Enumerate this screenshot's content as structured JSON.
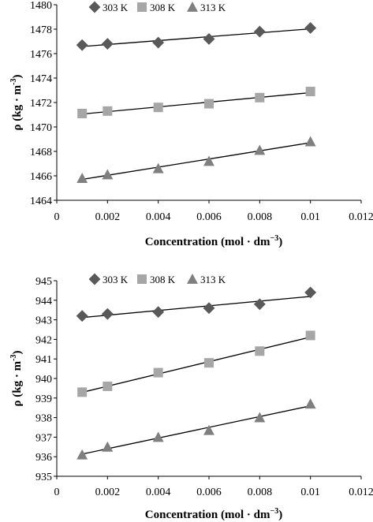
{
  "chart_data": [
    {
      "type": "scatter",
      "xlabel": "Concentration (mol · dm",
      "xlabel_sup": "−3",
      "xlabel_close": ")",
      "ylabel": "ρ (kg · m",
      "ylabel_sup": "-3",
      "ylabel_close": ")",
      "xlim": [
        0,
        0.012
      ],
      "ylim": [
        1464,
        1480
      ],
      "x_ticks": [
        "0",
        "0.002",
        "0.004",
        "0.006",
        "0.008",
        "0.01",
        "0.012"
      ],
      "y_ticks": [
        "1464",
        "1466",
        "1468",
        "1470",
        "1472",
        "1474",
        "1476",
        "1478",
        "1480"
      ],
      "legend_position": "top",
      "grid": false,
      "trendline": "linear",
      "series": [
        {
          "name": "303 K",
          "marker": "diamond",
          "color": "#595959",
          "x": [
            0.001,
            0.002,
            0.004,
            0.006,
            0.008,
            0.01
          ],
          "y": [
            1476.7,
            1476.8,
            1476.9,
            1477.2,
            1477.8,
            1478.1
          ]
        },
        {
          "name": "308 K",
          "marker": "square",
          "color": "#a6a6a6",
          "x": [
            0.001,
            0.002,
            0.004,
            0.006,
            0.008,
            0.01
          ],
          "y": [
            1471.1,
            1471.3,
            1471.6,
            1471.9,
            1472.4,
            1472.9
          ]
        },
        {
          "name": "313 K",
          "marker": "triangle",
          "color": "#7f7f7f",
          "x": [
            0.001,
            0.002,
            0.004,
            0.006,
            0.008,
            0.01
          ],
          "y": [
            1465.8,
            1466.1,
            1466.6,
            1467.2,
            1468.1,
            1468.8
          ]
        }
      ]
    },
    {
      "type": "scatter",
      "xlabel": "Concentration (mol · dm",
      "xlabel_sup": "−3",
      "xlabel_close": ")",
      "ylabel": "ρ (kg · m",
      "ylabel_sup": "-3",
      "ylabel_close": ")",
      "xlim": [
        0,
        0.012
      ],
      "ylim": [
        935,
        945
      ],
      "x_ticks": [
        "0",
        "0.002",
        "0.004",
        "0.006",
        "0.008",
        "0.01",
        "0.012"
      ],
      "y_ticks": [
        "935",
        "936",
        "937",
        "938",
        "939",
        "940",
        "941",
        "942",
        "943",
        "944",
        "945"
      ],
      "legend_position": "top",
      "grid": false,
      "trendline": "linear",
      "series": [
        {
          "name": "303 K",
          "marker": "diamond",
          "color": "#595959",
          "x": [
            0.001,
            0.002,
            0.004,
            0.006,
            0.008,
            0.01
          ],
          "y": [
            943.2,
            943.3,
            943.4,
            943.6,
            943.8,
            944.4
          ]
        },
        {
          "name": "308 K",
          "marker": "square",
          "color": "#a6a6a6",
          "x": [
            0.001,
            0.002,
            0.004,
            0.006,
            0.008,
            0.01
          ],
          "y": [
            939.3,
            939.6,
            940.3,
            940.8,
            941.4,
            942.2
          ]
        },
        {
          "name": "313 K",
          "marker": "triangle",
          "color": "#7f7f7f",
          "x": [
            0.001,
            0.002,
            0.004,
            0.006,
            0.008,
            0.01
          ],
          "y": [
            936.1,
            936.5,
            937.0,
            937.35,
            938.0,
            938.7
          ]
        }
      ]
    }
  ]
}
